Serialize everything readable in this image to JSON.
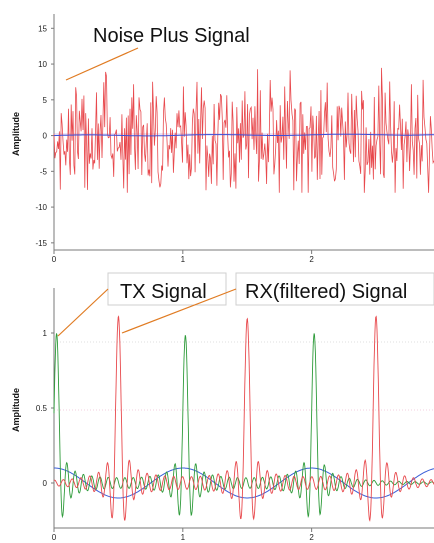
{
  "chart_data": [
    {
      "type": "line",
      "ylabel": "Amplitude",
      "xlim": [
        0,
        2.95
      ],
      "ylim": [
        -16,
        17
      ],
      "y_ticks": [
        "15",
        "10",
        "5",
        "0",
        "-5",
        "-10",
        "-15"
      ],
      "y_tick_values": [
        15,
        10,
        5,
        0,
        -5,
        -10,
        -15
      ],
      "x_ticks": [
        "0",
        "1",
        "2"
      ],
      "x_tick_values": [
        0,
        1,
        2
      ],
      "annotations": [
        {
          "text": "Noise Plus Signal"
        }
      ],
      "series": [
        {
          "color": "#e8494d",
          "style": "noisy",
          "approx_range": [
            -8,
            10
          ]
        },
        {
          "color": "#3b4fd8",
          "style": "near-zero baseline",
          "approx_range": [
            -0.2,
            0.3
          ]
        }
      ],
      "grid": {
        "zero_line_color": "#c8b8e8"
      }
    },
    {
      "type": "line",
      "ylabel": "Amplitude",
      "xlim": [
        0,
        2.95
      ],
      "ylim": [
        -0.3,
        1.3
      ],
      "y_ticks": [
        "1",
        "0.5",
        "0"
      ],
      "y_tick_values": [
        1,
        0.5,
        0
      ],
      "x_ticks": [
        "0",
        "1",
        "2"
      ],
      "x_tick_values": [
        0,
        1,
        2
      ],
      "annotations": [
        {
          "text": "TX Signal"
        },
        {
          "text": "RX(filtered) Signal"
        }
      ],
      "series": [
        {
          "color": "#2e9b3a",
          "peak_times": [
            0.02,
            1.02,
            2.02
          ],
          "peak_value": 1.0
        },
        {
          "color": "#e8494d",
          "peak_times": [
            0.5,
            1.5,
            2.5
          ],
          "peak_value": 1.12
        },
        {
          "color": "#3b5fd8",
          "amplitude": 0.1,
          "period": 1.0
        }
      ],
      "grid": {
        "dotted_lines_at": [
          1,
          0.5
        ]
      }
    }
  ],
  "colors": {
    "callout_line": "#e07b22",
    "callout_box_border": "#cfcfcf",
    "axis": "#7a7a7a"
  }
}
